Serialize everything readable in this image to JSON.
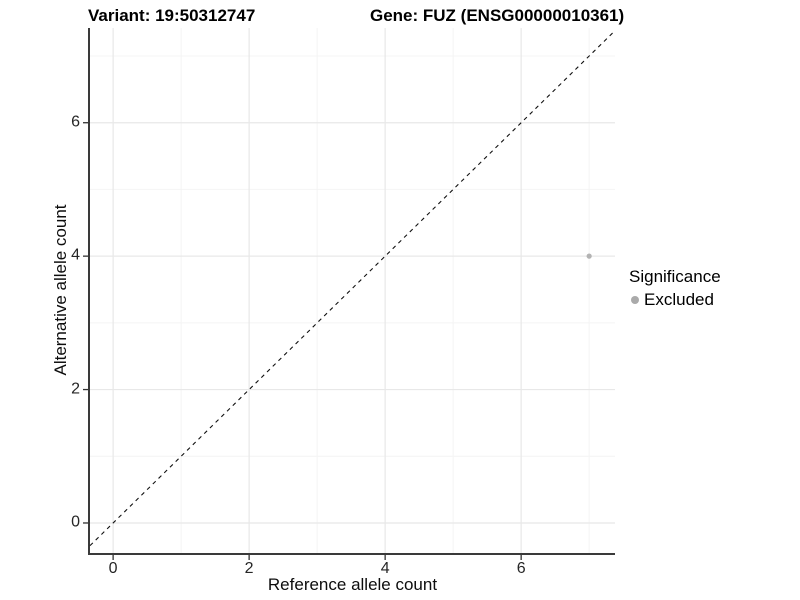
{
  "chart_data": {
    "type": "scatter",
    "titles": {
      "left": "Variant: 19:50312747",
      "right": "Gene: FUZ (ENSG00000010361)"
    },
    "xlabel": "Reference allele count",
    "ylabel": "Alternative allele count",
    "xlim": [
      -0.34,
      7.38
    ],
    "ylim": [
      -0.45,
      7.42
    ],
    "xticks": [
      0,
      2,
      4,
      6
    ],
    "yticks": [
      0,
      2,
      4,
      6
    ],
    "xticks_minor": [
      1,
      3,
      5,
      7
    ],
    "yticks_minor": [
      1,
      3,
      5,
      7
    ],
    "grid": "major+minor",
    "identity_line": {
      "style": "dashed",
      "equation": "y = x",
      "color": "#111111"
    },
    "series": [
      {
        "name": "Excluded",
        "color": "#b3b3b3",
        "points": [
          [
            7,
            4
          ]
        ]
      }
    ],
    "legend": {
      "title": "Significance",
      "position": "right",
      "items": [
        {
          "label": "Excluded",
          "color": "#aaaaaa"
        }
      ]
    },
    "colors": {
      "background": "#ffffff",
      "grid_major": "#e8e8e8",
      "grid_minor": "#f4f4f4",
      "axis_line": "#3a3a3a",
      "tick_mark": "#333333",
      "tick_label": "#262626"
    }
  }
}
